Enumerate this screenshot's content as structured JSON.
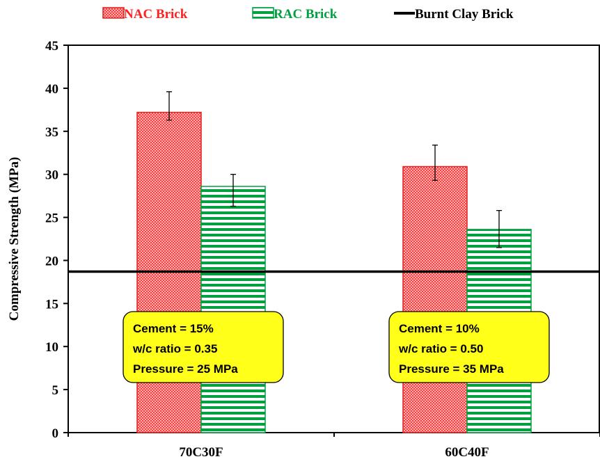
{
  "chart_data": {
    "type": "bar",
    "categories": [
      "70C30F",
      "60C40F"
    ],
    "series": [
      {
        "name": "NAC Brick",
        "values": [
          37.2,
          30.9
        ],
        "error_high": [
          39.6,
          33.4
        ],
        "error_low": [
          36.3,
          29.3
        ],
        "color": "#ff3b3b",
        "pattern": "dots"
      },
      {
        "name": "RAC Brick",
        "values": [
          28.6,
          23.6
        ],
        "error_high": [
          30.0,
          25.8
        ],
        "error_low": [
          26.3,
          21.5
        ],
        "color": "#00a040",
        "pattern": "horizontal-stripes"
      }
    ],
    "reference_lines": [
      {
        "name": "Burnt Clay Brick",
        "value": 18.7,
        "color": "#000000"
      }
    ],
    "xlabel": "",
    "ylabel": "Compressive Strength (MPa)",
    "ylim": [
      0,
      45
    ],
    "yticks": [
      "0",
      "5",
      "10",
      "15",
      "20",
      "25",
      "30",
      "35",
      "40",
      "45"
    ],
    "legend_position": "top",
    "grid": false,
    "annotations": [
      {
        "category": "70C30F",
        "lines": [
          "Cement = 15%",
          "w/c ratio = 0.35",
          "Pressure = 25 MPa"
        ],
        "background": "#ffff1a"
      },
      {
        "category": "60C40F",
        "lines": [
          "Cement = 10%",
          "w/c ratio = 0.50",
          "Pressure = 35 MPa"
        ],
        "background": "#ffff1a"
      }
    ]
  }
}
